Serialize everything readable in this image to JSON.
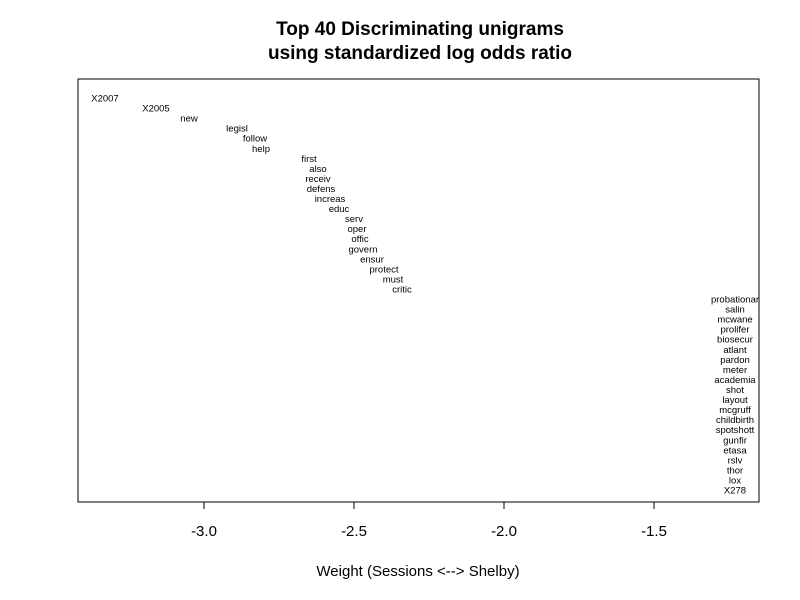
{
  "chart_data": {
    "type": "scatter",
    "title_lines": [
      "Top 40 Discriminating unigrams",
      "using standardized log odds ratio"
    ],
    "xlabel": "Weight (Sessions <--> Shelby)",
    "ylabel": "",
    "xlim": [
      -3.42,
      -1.15
    ],
    "xticks": [
      -3.0,
      -2.5,
      -2.0,
      -1.5
    ],
    "xtick_labels": [
      "-3.0",
      "-2.5",
      "-2.0",
      "-1.5"
    ],
    "y_axis_shown": false,
    "grid": false,
    "points": [
      {
        "label": "X2007",
        "x": -3.33
      },
      {
        "label": "X2005",
        "x": -3.16
      },
      {
        "label": "new",
        "x": -3.05
      },
      {
        "label": "legisl",
        "x": -2.89
      },
      {
        "label": "follow",
        "x": -2.83
      },
      {
        "label": "help",
        "x": -2.81
      },
      {
        "label": "first",
        "x": -2.65
      },
      {
        "label": "also",
        "x": -2.62
      },
      {
        "label": "receiv",
        "x": -2.62
      },
      {
        "label": "defens",
        "x": -2.61
      },
      {
        "label": "increas",
        "x": -2.58
      },
      {
        "label": "educ",
        "x": -2.55
      },
      {
        "label": "serv",
        "x": -2.5
      },
      {
        "label": "oper",
        "x": -2.49
      },
      {
        "label": "offic",
        "x": -2.48
      },
      {
        "label": "govern",
        "x": -2.47
      },
      {
        "label": "ensur",
        "x": -2.44
      },
      {
        "label": "protect",
        "x": -2.4
      },
      {
        "label": "must",
        "x": -2.37
      },
      {
        "label": "critic",
        "x": -2.34
      },
      {
        "label": "probationar",
        "x": -1.23
      },
      {
        "label": "salin",
        "x": -1.23
      },
      {
        "label": "mcwane",
        "x": -1.23
      },
      {
        "label": "prolifer",
        "x": -1.23
      },
      {
        "label": "biosecur",
        "x": -1.23
      },
      {
        "label": "atlant",
        "x": -1.23
      },
      {
        "label": "pardon",
        "x": -1.23
      },
      {
        "label": "meter",
        "x": -1.23
      },
      {
        "label": "academia",
        "x": -1.23
      },
      {
        "label": "shot",
        "x": -1.23
      },
      {
        "label": "layout",
        "x": -1.23
      },
      {
        "label": "mcgruff",
        "x": -1.23
      },
      {
        "label": "childbirth",
        "x": -1.23
      },
      {
        "label": "spotshott",
        "x": -1.23
      },
      {
        "label": "gunfir",
        "x": -1.23
      },
      {
        "label": "etasa",
        "x": -1.23
      },
      {
        "label": "rslv",
        "x": -1.23
      },
      {
        "label": "thor",
        "x": -1.23
      },
      {
        "label": "lox",
        "x": -1.23
      },
      {
        "label": "X278",
        "x": -1.23
      }
    ]
  }
}
